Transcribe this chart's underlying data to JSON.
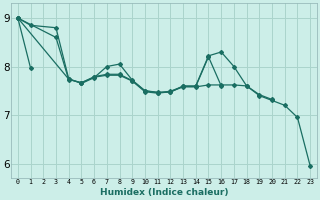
{
  "xlabel": "Humidex (Indice chaleur)",
  "bg_color": "#cceee8",
  "grid_color": "#aad4cc",
  "line_color": "#1a6e62",
  "xlim": [
    -0.5,
    23.5
  ],
  "ylim": [
    5.7,
    9.3
  ],
  "yticks": [
    6,
    7,
    8,
    9
  ],
  "xticks": [
    0,
    1,
    2,
    3,
    4,
    5,
    6,
    7,
    8,
    9,
    10,
    11,
    12,
    13,
    14,
    15,
    16,
    17,
    18,
    19,
    20,
    21,
    22,
    23
  ],
  "series": [
    [
      [
        0,
        9.0
      ],
      [
        1,
        8.85
      ],
      [
        3,
        8.8
      ],
      [
        4,
        7.75
      ],
      [
        5,
        7.65
      ],
      [
        6,
        7.77
      ],
      [
        7,
        8.0
      ],
      [
        8,
        8.05
      ],
      [
        9,
        7.72
      ],
      [
        10,
        7.5
      ],
      [
        11,
        7.47
      ],
      [
        12,
        7.47
      ],
      [
        13,
        7.6
      ],
      [
        14,
        7.6
      ],
      [
        15,
        8.22
      ],
      [
        16,
        8.3
      ],
      [
        17,
        8.0
      ],
      [
        18,
        7.6
      ],
      [
        19,
        7.4
      ],
      [
        20,
        7.3
      ],
      [
        21,
        7.2
      ],
      [
        22,
        6.95
      ],
      [
        23,
        5.95
      ]
    ],
    [
      [
        0,
        9.0
      ],
      [
        3,
        8.6
      ],
      [
        4,
        7.73
      ],
      [
        5,
        7.67
      ],
      [
        6,
        7.78
      ],
      [
        7,
        7.82
      ],
      [
        8,
        7.82
      ],
      [
        9,
        7.7
      ],
      [
        10,
        7.48
      ],
      [
        11,
        7.45
      ],
      [
        12,
        7.48
      ],
      [
        13,
        7.58
      ],
      [
        14,
        7.58
      ],
      [
        15,
        7.62
      ],
      [
        16,
        7.62
      ],
      [
        17,
        7.62
      ],
      [
        18,
        7.6
      ],
      [
        19,
        7.42
      ],
      [
        20,
        7.32
      ]
    ],
    [
      [
        0,
        9.0
      ],
      [
        4,
        7.74
      ],
      [
        5,
        7.66
      ],
      [
        6,
        7.79
      ],
      [
        7,
        7.84
      ],
      [
        8,
        7.84
      ],
      [
        9,
        7.71
      ],
      [
        10,
        7.5
      ],
      [
        11,
        7.46
      ],
      [
        12,
        7.49
      ],
      [
        13,
        7.59
      ],
      [
        14,
        7.59
      ],
      [
        15,
        8.2
      ],
      [
        16,
        7.6
      ]
    ],
    [
      [
        0,
        9.0
      ],
      [
        1,
        7.97
      ]
    ]
  ]
}
